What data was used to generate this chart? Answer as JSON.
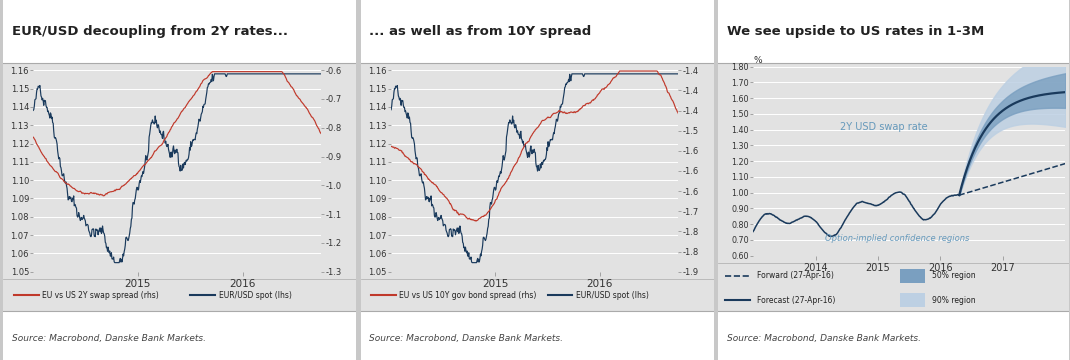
{
  "chart1": {
    "title": "EUR/USD decoupling from 2Y rates...",
    "lhs_ylim": [
      1.05,
      1.16
    ],
    "lhs_yticks": [
      1.05,
      1.06,
      1.07,
      1.08,
      1.09,
      1.1,
      1.11,
      1.12,
      1.13,
      1.14,
      1.15,
      1.16
    ],
    "rhs_ylim": [
      -1.3,
      -0.6
    ],
    "rhs_yticks": [
      -1.3,
      -1.2,
      -1.1,
      -1.0,
      -0.9,
      -0.8,
      -0.7,
      -0.6
    ],
    "legend1": "EU vs US 2Y swap spread (rhs)",
    "legend2": "EUR/USD spot (lhs)",
    "source": "Source: Macrobond, Danske Bank Markets."
  },
  "chart2": {
    "title": "... as well as from 10Y spread",
    "lhs_ylim": [
      1.05,
      1.16
    ],
    "lhs_yticks": [
      1.05,
      1.06,
      1.07,
      1.08,
      1.09,
      1.1,
      1.11,
      1.12,
      1.13,
      1.14,
      1.15,
      1.16
    ],
    "rhs_ylim": [
      -1.85,
      -1.35
    ],
    "rhs_yticks": [
      -1.85,
      -1.8,
      -1.75,
      -1.7,
      -1.65,
      -1.6,
      -1.55,
      -1.5,
      -1.45,
      -1.4,
      -1.35
    ],
    "legend1": "EU vs US 10Y gov bond spread (rhs)",
    "legend2": "EUR/USD spot (lhs)",
    "source": "Source: Macrobond, Danske Bank Markets."
  },
  "chart3": {
    "title": "We see upside to US rates in 1-3M",
    "ylim": [
      0.6,
      1.8
    ],
    "yticks": [
      0.6,
      0.7,
      0.8,
      0.9,
      1.0,
      1.1,
      1.2,
      1.3,
      1.4,
      1.5,
      1.6,
      1.7,
      1.8
    ],
    "ylabel": "%",
    "annotation": "2Y USD swap rate",
    "annotation2": "Option-implied confidence regions",
    "legend_forward": "Forward (27-Apr-16)",
    "legend_forecast": "Forecast (27-Apr-16)",
    "legend_50": "50% region",
    "legend_90": "90% region",
    "source": "Source: Macrobond, Danske Bank Markets."
  },
  "colors": {
    "red": "#c0392b",
    "dark_blue": "#1a3a5c",
    "light_blue_50": "#7a9fc0",
    "light_blue_90": "#bdd0e3",
    "bg_panel": "#e2e2e2",
    "bg_outer": "#c8c8c8",
    "text_dark": "#222222",
    "grid_line": "#ffffff",
    "sep_line": "#aaaaaa",
    "annotation_blue": "#6699bb"
  }
}
